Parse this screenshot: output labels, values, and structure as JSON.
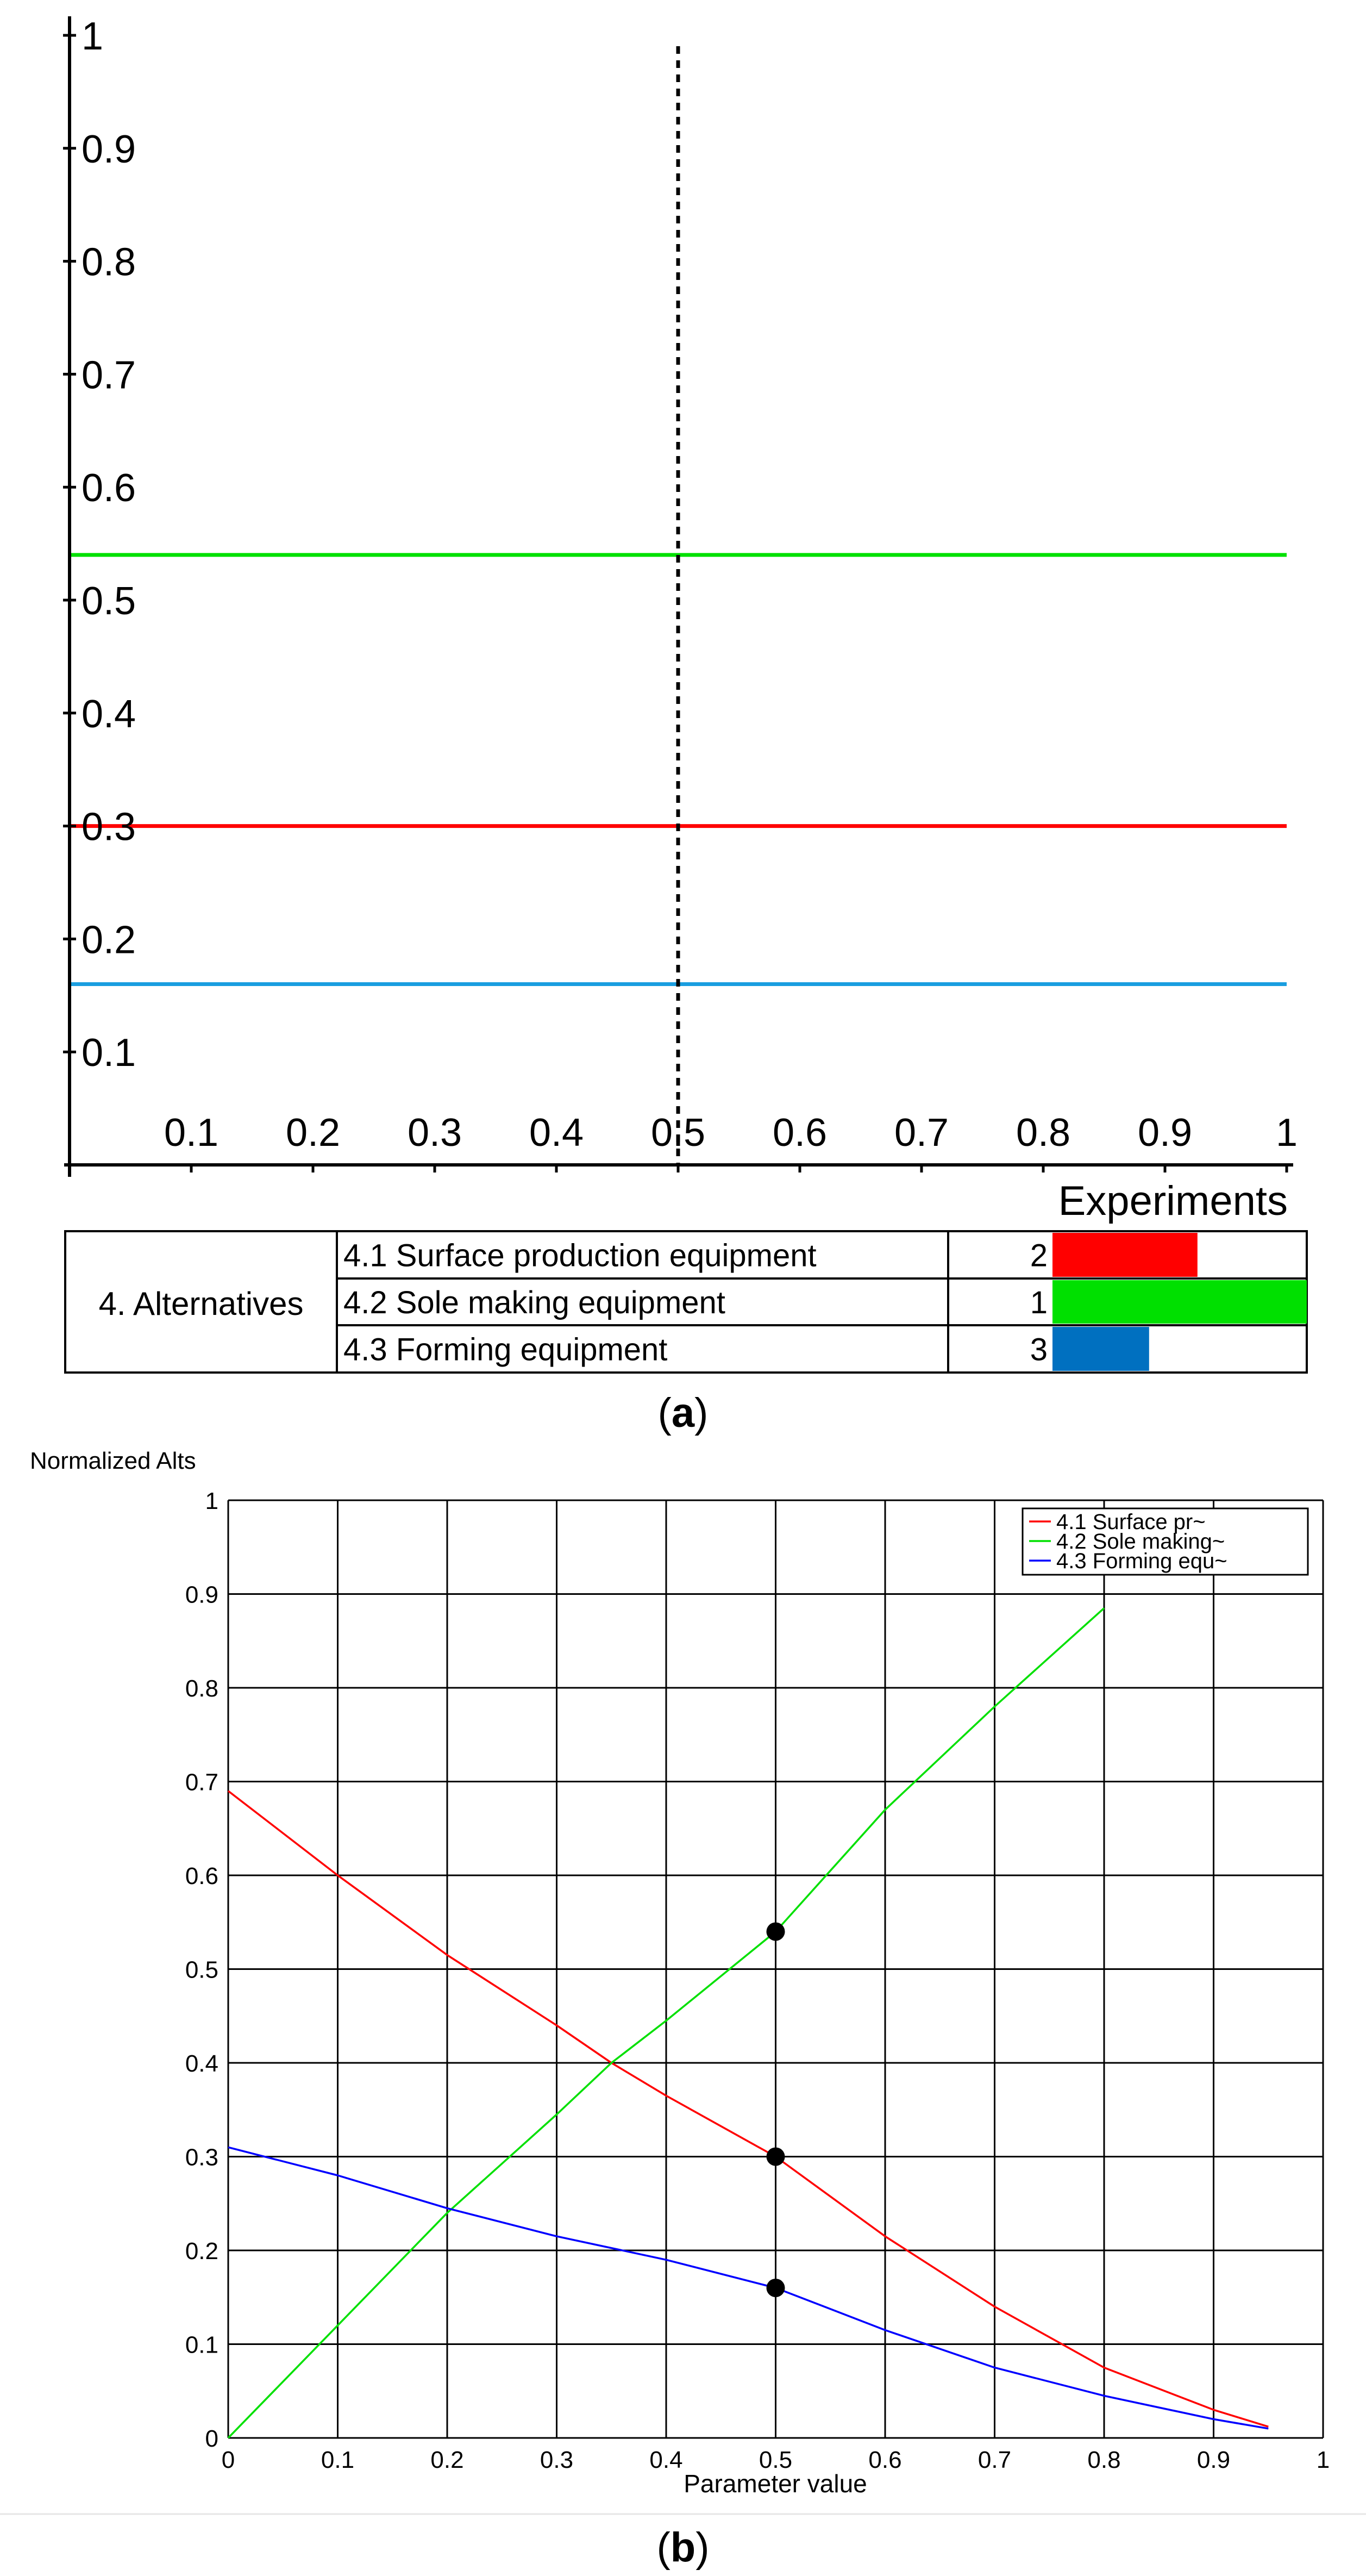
{
  "panel_a": {
    "caption_prefix": "(",
    "caption_letter": "a",
    "caption_suffix": ")",
    "x_axis_label": "Experiments",
    "table": {
      "group_label": "4. Alternatives",
      "rows": [
        {
          "label": "4.1 Surface production equipment",
          "rank": "2",
          "color": "#ff0000",
          "fraction": 0.57
        },
        {
          "label": "4.2 Sole making equipment",
          "rank": "1",
          "color": "#00e000",
          "fraction": 1.0
        },
        {
          "label": "4.3 Forming equipment",
          "rank": "3",
          "color": "#0070c0",
          "fraction": 0.38
        }
      ]
    }
  },
  "panel_b": {
    "caption_prefix": "(",
    "caption_letter": "b",
    "caption_suffix": ")"
  },
  "chart_data": [
    {
      "type": "line",
      "panel": "a",
      "xlabel": "Experiments",
      "ylabel": "",
      "xlim": [
        0,
        1
      ],
      "ylim": [
        0,
        1
      ],
      "x_ticks": [
        "0.1",
        "0.2",
        "0.3",
        "0.4",
        "0.5",
        "0.6",
        "0.7",
        "0.8",
        "0.9",
        "1"
      ],
      "y_ticks": [
        "0.1",
        "0.2",
        "0.3",
        "0.4",
        "0.5",
        "0.6",
        "0.7",
        "0.8",
        "0.9",
        "1"
      ],
      "marker_x": 0.5,
      "series": [
        {
          "color": "#00e000",
          "x": [
            0,
            1
          ],
          "y": [
            0.54,
            0.54
          ]
        },
        {
          "color": "#ff0000",
          "x": [
            0,
            1
          ],
          "y": [
            0.3,
            0.3
          ]
        },
        {
          "color": "#1a9ee0",
          "x": [
            0,
            1
          ],
          "y": [
            0.16,
            0.16
          ]
        }
      ]
    },
    {
      "type": "line",
      "panel": "b",
      "title": "Normalized Alts",
      "xlabel": "Parameter value",
      "ylabel": "",
      "xlim": [
        0,
        1
      ],
      "ylim": [
        0,
        1
      ],
      "grid": true,
      "legend": "top-right",
      "x_ticks": [
        "0",
        "0.1",
        "0.2",
        "0.3",
        "0.4",
        "0.5",
        "0.6",
        "0.7",
        "0.8",
        "0.9",
        "1"
      ],
      "y_ticks": [
        "0",
        "0.1",
        "0.2",
        "0.3",
        "0.4",
        "0.5",
        "0.6",
        "0.7",
        "0.8",
        "0.9",
        "1"
      ],
      "series": [
        {
          "name": "4.1  Surface pr~",
          "color": "#ff0000",
          "x": [
            0,
            0.1,
            0.2,
            0.3,
            0.35,
            0.4,
            0.5,
            0.6,
            0.7,
            0.8,
            0.9,
            0.95
          ],
          "y": [
            0.69,
            0.6,
            0.515,
            0.44,
            0.4,
            0.365,
            0.3,
            0.215,
            0.14,
            0.075,
            0.03,
            0.012
          ]
        },
        {
          "name": "4.2 Sole making~",
          "color": "#00e000",
          "x": [
            0,
            0.1,
            0.2,
            0.3,
            0.35,
            0.4,
            0.5,
            0.6,
            0.7,
            0.8
          ],
          "y": [
            0.0,
            0.12,
            0.24,
            0.345,
            0.4,
            0.445,
            0.54,
            0.67,
            0.78,
            0.885
          ]
        },
        {
          "name": "4.3 Forming equ~",
          "color": "#0000ff",
          "x": [
            0,
            0.1,
            0.2,
            0.3,
            0.4,
            0.5,
            0.6,
            0.7,
            0.8,
            0.9,
            0.95
          ],
          "y": [
            0.31,
            0.28,
            0.245,
            0.215,
            0.19,
            0.16,
            0.115,
            0.075,
            0.045,
            0.02,
            0.01
          ]
        }
      ],
      "points": [
        {
          "x": 0.5,
          "y": 0.54
        },
        {
          "x": 0.5,
          "y": 0.3
        },
        {
          "x": 0.5,
          "y": 0.16
        }
      ]
    }
  ]
}
